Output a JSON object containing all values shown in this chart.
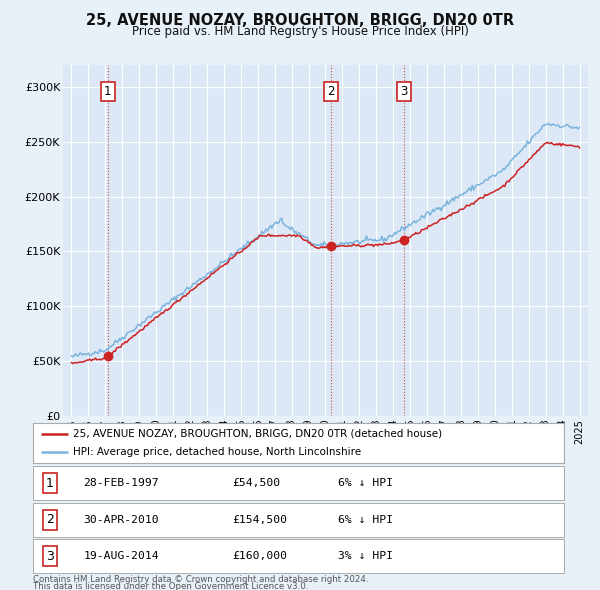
{
  "title": "25, AVENUE NOZAY, BROUGHTON, BRIGG, DN20 0TR",
  "subtitle": "Price paid vs. HM Land Registry's House Price Index (HPI)",
  "background_color": "#e8f0f8",
  "plot_bg_color": "#dce8f5",
  "legend_label_red": "25, AVENUE NOZAY, BROUGHTON, BRIGG, DN20 0TR (detached house)",
  "legend_label_blue": "HPI: Average price, detached house, North Lincolnshire",
  "sale_points": [
    {
      "num": 1,
      "date_label": "28-FEB-1997",
      "price": 54500,
      "pct": "6%",
      "x_year": 1997.15
    },
    {
      "num": 2,
      "date_label": "30-APR-2010",
      "price": 154500,
      "pct": "6%",
      "x_year": 2010.33
    },
    {
      "num": 3,
      "date_label": "19-AUG-2014",
      "price": 160000,
      "pct": "3%",
      "x_year": 2014.63
    }
  ],
  "footer_line1": "Contains HM Land Registry data © Crown copyright and database right 2024.",
  "footer_line2": "This data is licensed under the Open Government Licence v3.0.",
  "ylim": [
    0,
    320000
  ],
  "xlim_start": 1994.5,
  "xlim_end": 2025.5,
  "table_data": [
    {
      "num": "1",
      "date": "28-FEB-1997",
      "price": "£54,500",
      "pct": "6% ↓ HPI"
    },
    {
      "num": "2",
      "date": "30-APR-2010",
      "price": "£154,500",
      "pct": "6% ↓ HPI"
    },
    {
      "num": "3",
      "date": "19-AUG-2014",
      "price": "£160,000",
      "pct": "3% ↓ HPI"
    }
  ]
}
